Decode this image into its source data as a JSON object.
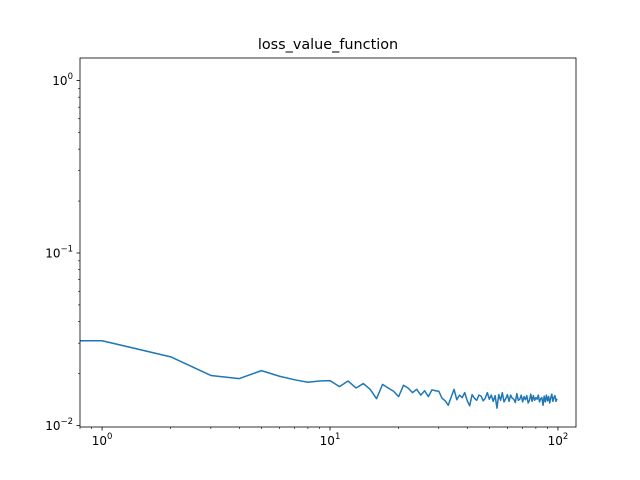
{
  "chart_data": {
    "type": "line",
    "title": "loss_value_function",
    "xlabel": "",
    "ylabel": "",
    "xscale": "log",
    "yscale": "log",
    "xlim": [
      0.8,
      120
    ],
    "ylim": [
      0.0098,
      1.35
    ],
    "x_ticks": [
      {
        "value": 1,
        "base": "10",
        "exp": "0"
      },
      {
        "value": 10,
        "base": "10",
        "exp": "1"
      },
      {
        "value": 100,
        "base": "10",
        "exp": "2"
      }
    ],
    "y_ticks": [
      {
        "value": 0.01,
        "base": "10",
        "exp": "−2"
      },
      {
        "value": 0.1,
        "base": "10",
        "exp": "−1"
      },
      {
        "value": 1,
        "base": "10",
        "exp": "0"
      }
    ],
    "grid": false,
    "legend": "none",
    "series": [
      {
        "color": "#1f77b4",
        "x": [
          0.8,
          1,
          2,
          3,
          4,
          5,
          6,
          7,
          8,
          9,
          10,
          11,
          12,
          13,
          14,
          15,
          16,
          17,
          18,
          19,
          20,
          21,
          22,
          23,
          24,
          25,
          26,
          27,
          28,
          29,
          30,
          31,
          32,
          33,
          34,
          35,
          36,
          37,
          38,
          39,
          40,
          41,
          42,
          43,
          44,
          45,
          46,
          47,
          48,
          49,
          50,
          51,
          52,
          53,
          54,
          55,
          56,
          57,
          58,
          59,
          60,
          61,
          62,
          63,
          64,
          65,
          66,
          67,
          68,
          69,
          70,
          71,
          72,
          73,
          74,
          75,
          76,
          77,
          78,
          79,
          80,
          81,
          82,
          83,
          84,
          85,
          86,
          87,
          88,
          89,
          90,
          91,
          92,
          93,
          94,
          95,
          96,
          97,
          98,
          99
        ],
        "y": [
          0.031,
          0.031,
          0.025,
          0.0195,
          0.0187,
          0.0208,
          0.0193,
          0.0184,
          0.0178,
          0.0181,
          0.0182,
          0.0168,
          0.0181,
          0.0165,
          0.0175,
          0.0162,
          0.0143,
          0.0173,
          0.0165,
          0.0158,
          0.0147,
          0.0171,
          0.0165,
          0.0155,
          0.0162,
          0.015,
          0.0159,
          0.0147,
          0.0161,
          0.0159,
          0.0158,
          0.0144,
          0.0139,
          0.0131,
          0.0146,
          0.0162,
          0.0141,
          0.015,
          0.0145,
          0.0155,
          0.0139,
          0.013,
          0.0151,
          0.0144,
          0.014,
          0.015,
          0.0148,
          0.0139,
          0.0144,
          0.0155,
          0.0142,
          0.015,
          0.0138,
          0.0149,
          0.0126,
          0.0151,
          0.014,
          0.0155,
          0.0137,
          0.0143,
          0.0151,
          0.0138,
          0.015,
          0.0144,
          0.0142,
          0.0136,
          0.0153,
          0.014,
          0.0142,
          0.015,
          0.0137,
          0.0147,
          0.0141,
          0.0149,
          0.0135,
          0.014,
          0.0152,
          0.0138,
          0.0149,
          0.014,
          0.0145,
          0.0142,
          0.015,
          0.0137,
          0.0143,
          0.0145,
          0.0131,
          0.0148,
          0.0137,
          0.015,
          0.0139,
          0.0147,
          0.0135,
          0.0145,
          0.0152,
          0.0138,
          0.0145,
          0.0149,
          0.0138,
          0.0143
        ]
      }
    ]
  }
}
